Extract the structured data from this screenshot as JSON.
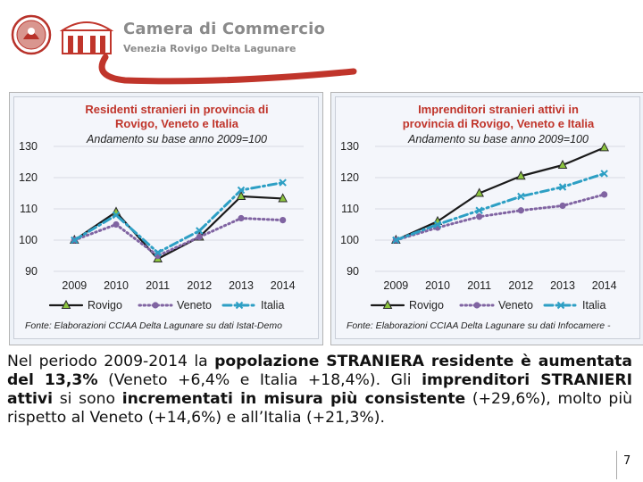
{
  "header": {
    "title": "Camera di Commercio",
    "subtitle": "Venezia Rovigo Delta Lagunare",
    "colors": {
      "brand_red": "#c0352b",
      "brand_gray": "#8a8a8a"
    }
  },
  "chart_data": [
    {
      "type": "line",
      "title": "Residenti stranieri in provincia di Rovigo, Veneto e Italia",
      "title_lines": [
        "Residenti stranieri in provincia di",
        "Rovigo, Veneto e Italia"
      ],
      "subtitle": "Andamento su base anno 2009=100",
      "categories": [
        "2009",
        "2010",
        "2011",
        "2012",
        "2013",
        "2014"
      ],
      "ylim": [
        90,
        130
      ],
      "yticks": [
        90,
        100,
        110,
        120,
        130
      ],
      "grid": true,
      "legend": "bottom",
      "series": [
        {
          "name": "Rovigo",
          "values": [
            100,
            109,
            94,
            101,
            114,
            113.3
          ],
          "color": "#1a1a1a",
          "style": "solid",
          "marker": "triangle"
        },
        {
          "name": "Veneto",
          "values": [
            100,
            105,
            95,
            101,
            107,
            106.4
          ],
          "color": "#8064a2",
          "style": "dotted",
          "marker": "circle"
        },
        {
          "name": "Italia",
          "values": [
            100,
            108,
            96,
            103,
            116,
            118.4
          ],
          "color": "#2d9fc4",
          "style": "dashdot",
          "marker": "x"
        }
      ],
      "source": "Fonte: Elaborazioni CCIAA Delta Lagunare su dati Istat-Demo"
    },
    {
      "type": "line",
      "title": "Imprenditori stranieri attivi in provincia di Rovigo, Veneto e Italia",
      "title_lines": [
        "Imprenditori stranieri  attivi in",
        "provincia di Rovigo, Veneto e Italia"
      ],
      "subtitle": "Andamento su base anno 2009=100",
      "categories": [
        "2009",
        "2010",
        "2011",
        "2012",
        "2013",
        "2014"
      ],
      "ylim": [
        90,
        130
      ],
      "yticks": [
        90,
        100,
        110,
        120,
        130
      ],
      "grid": true,
      "legend": "bottom",
      "series": [
        {
          "name": "Rovigo",
          "values": [
            100,
            106,
            115,
            120.5,
            124,
            129.6
          ],
          "color": "#1a1a1a",
          "style": "solid",
          "marker": "triangle"
        },
        {
          "name": "Veneto",
          "values": [
            100,
            104,
            107.5,
            109.5,
            111,
            114.6
          ],
          "color": "#8064a2",
          "style": "dotted",
          "marker": "circle"
        },
        {
          "name": "Italia",
          "values": [
            100,
            105,
            109.5,
            114,
            117,
            121.3
          ],
          "color": "#2d9fc4",
          "style": "dashdot",
          "marker": "x"
        }
      ],
      "source": "Fonte: Elaborazioni CCIAA Delta Lagunare su dati Infocamere -"
    }
  ],
  "body": {
    "seg1": "Nel periodo 2009-2014 la ",
    "seg2": "popolazione STRANIERA residente è aumentata del 13,3%",
    "seg3": " (Veneto +6,4% e Italia +18,4%). Gli ",
    "seg4": "imprenditori STRANIERI attivi",
    "seg5": " si sono ",
    "seg6": "incrementati in misura più consistente",
    "seg7": " (+29,6%), molto più rispetto al Veneto (+14,6%) e all’Italia (+21,3%)."
  },
  "page_number": "7"
}
